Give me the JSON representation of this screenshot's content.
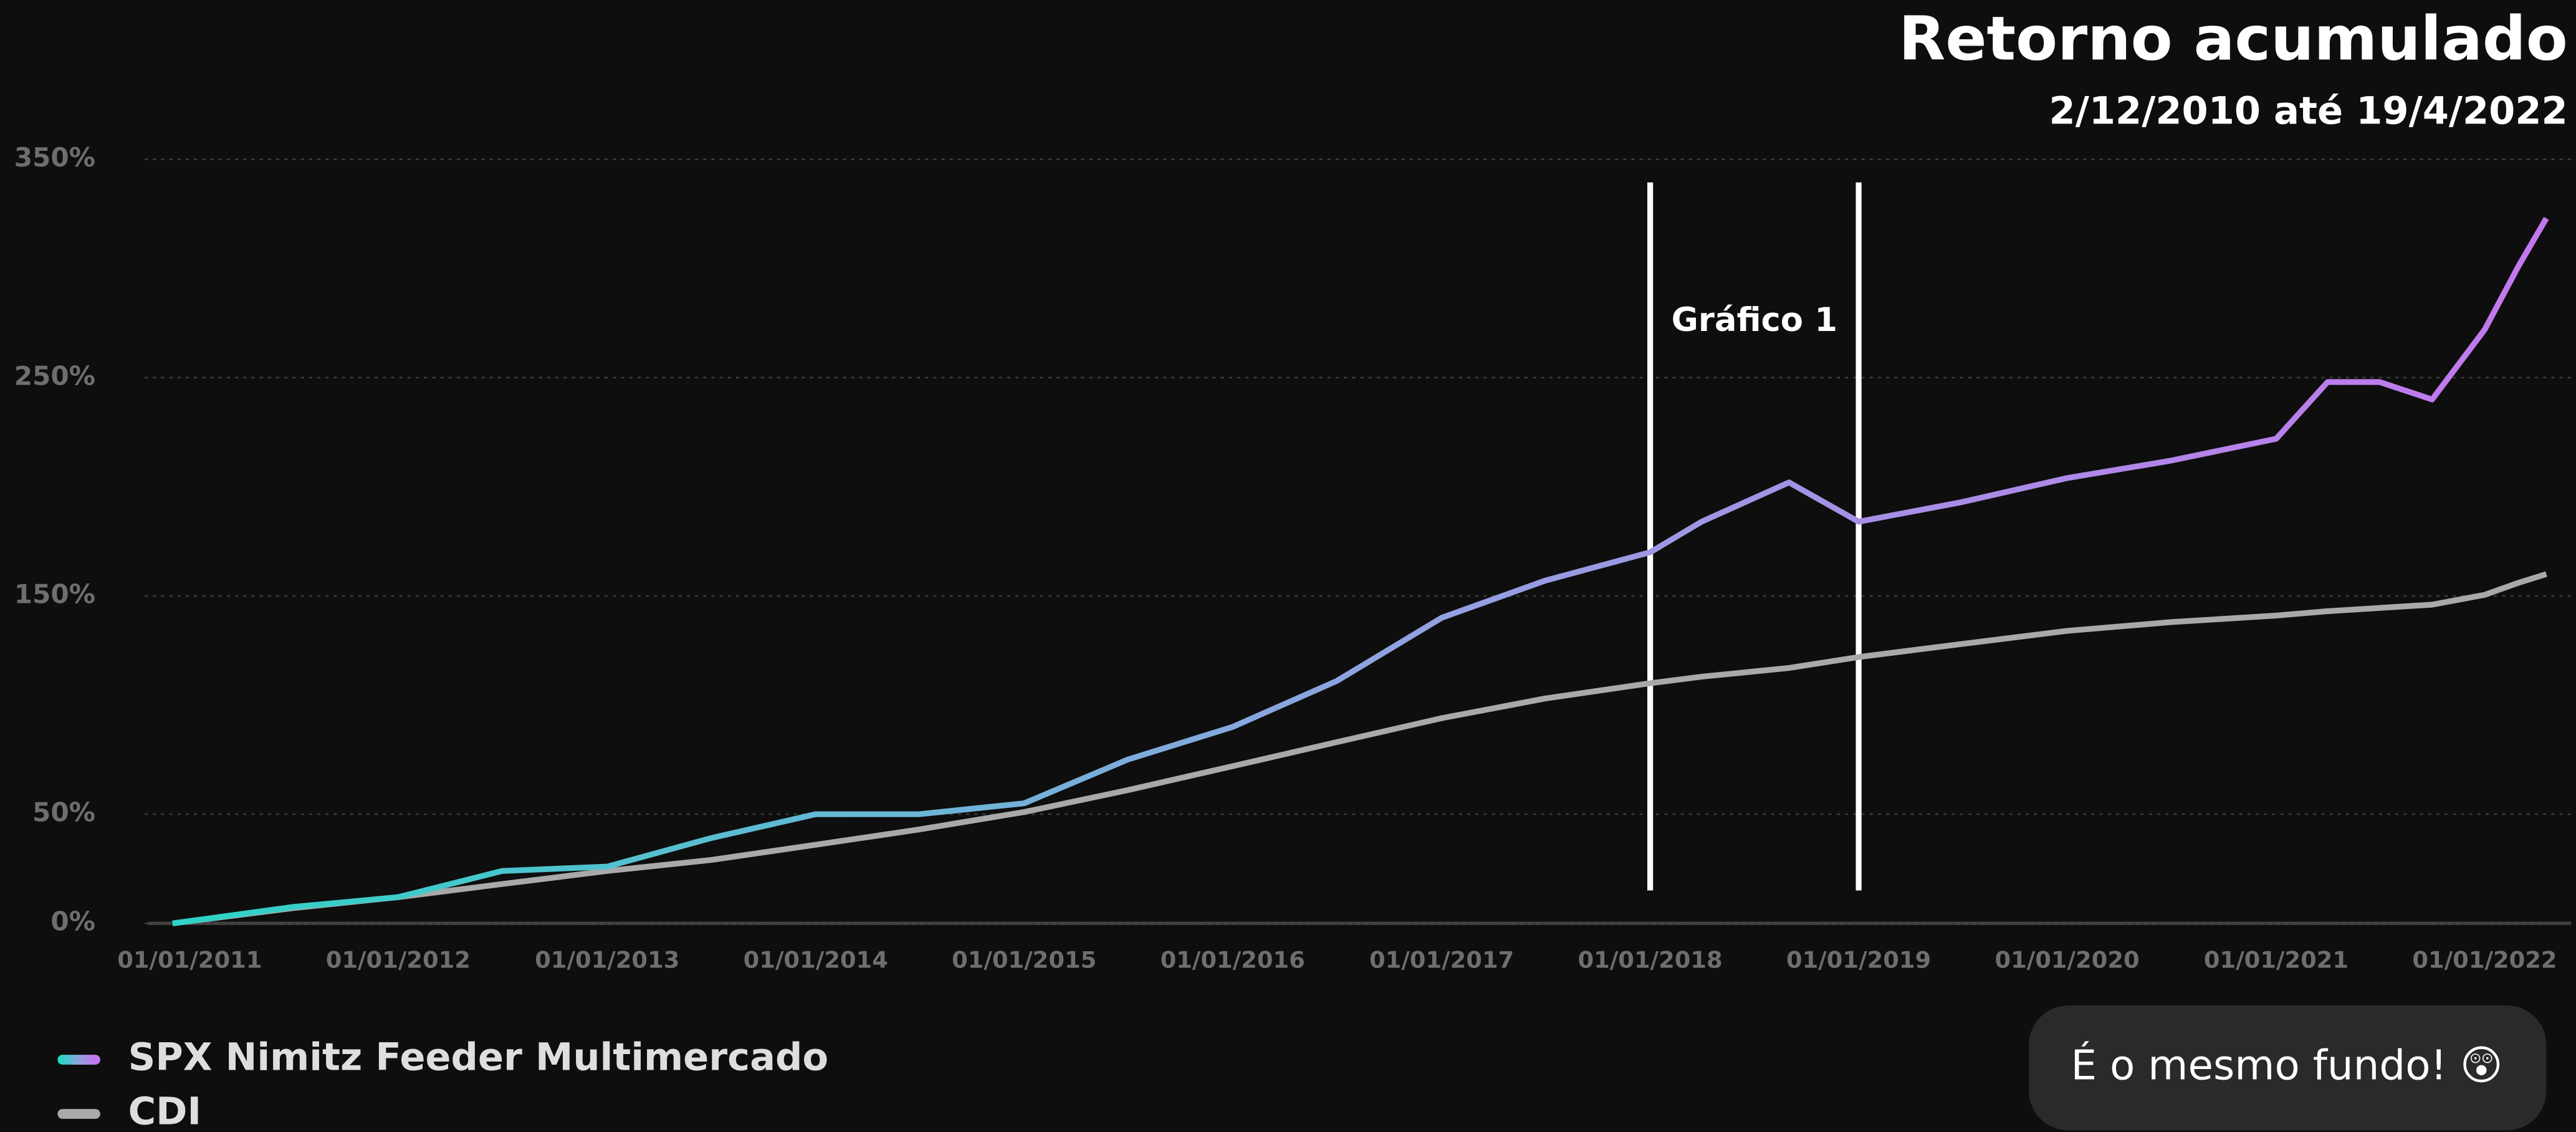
{
  "chart_data": {
    "type": "line",
    "title": "Retorno acumulado",
    "subtitle": "2/12/2010 até 19/4/2022",
    "xlim": [
      "2/12/2010",
      "19/4/2022"
    ],
    "xticks": [
      "01/01/2011",
      "01/01/2012",
      "01/01/2013",
      "01/01/2014",
      "01/01/2015",
      "01/01/2016",
      "01/01/2017",
      "01/01/2018",
      "01/01/2019",
      "01/01/2020",
      "01/01/2021",
      "01/01/2022"
    ],
    "ylim": [
      0,
      350
    ],
    "yticks": [
      {
        "value": 0,
        "label": "0%"
      },
      {
        "value": 50,
        "label": "50%"
      },
      {
        "value": 150,
        "label": "150%"
      },
      {
        "value": 250,
        "label": "250%"
      },
      {
        "value": 350,
        "label": "350%"
      }
    ],
    "grid": true,
    "x": [
      "2/12/2010",
      "01/07/2011",
      "01/01/2012",
      "01/07/2012",
      "01/01/2013",
      "01/07/2013",
      "01/01/2014",
      "01/07/2014",
      "01/01/2015",
      "01/07/2015",
      "01/01/2016",
      "01/07/2016",
      "01/01/2017",
      "01/07/2017",
      "01/01/2018",
      "01/04/2018",
      "01/09/2018",
      "01/01/2019",
      "01/07/2019",
      "01/01/2020",
      "01/07/2020",
      "01/01/2021",
      "01/04/2021",
      "01/07/2021",
      "01/10/2021",
      "01/01/2022",
      "01/03/2022",
      "19/4/2022"
    ],
    "series": [
      {
        "name": "SPX Nimitz Feeder Multimercado",
        "color": [
          "#2ed3c6",
          "#8fa3e0",
          "#c377ee"
        ],
        "values": [
          0,
          7.5,
          12,
          24,
          26,
          39,
          50,
          50,
          55,
          75,
          90,
          111,
          140,
          157,
          170,
          184,
          202,
          184,
          193,
          204,
          212,
          222,
          248,
          248,
          240,
          272,
          301,
          323
        ]
      },
      {
        "name": "CDI",
        "color": "#a9a9a9",
        "values": [
          0,
          7,
          12,
          18,
          24,
          29,
          36,
          43,
          51,
          61,
          72,
          83,
          94,
          103,
          110,
          113,
          117,
          122,
          128,
          134,
          138,
          141,
          143,
          144.5,
          146,
          150.5,
          156,
          160
        ]
      }
    ],
    "annotation": {
      "text": "Gráfico 1",
      "x": [
        "01/01/2018",
        "01/01/2019"
      ]
    },
    "note": "É o mesmo fundo! 😲"
  }
}
